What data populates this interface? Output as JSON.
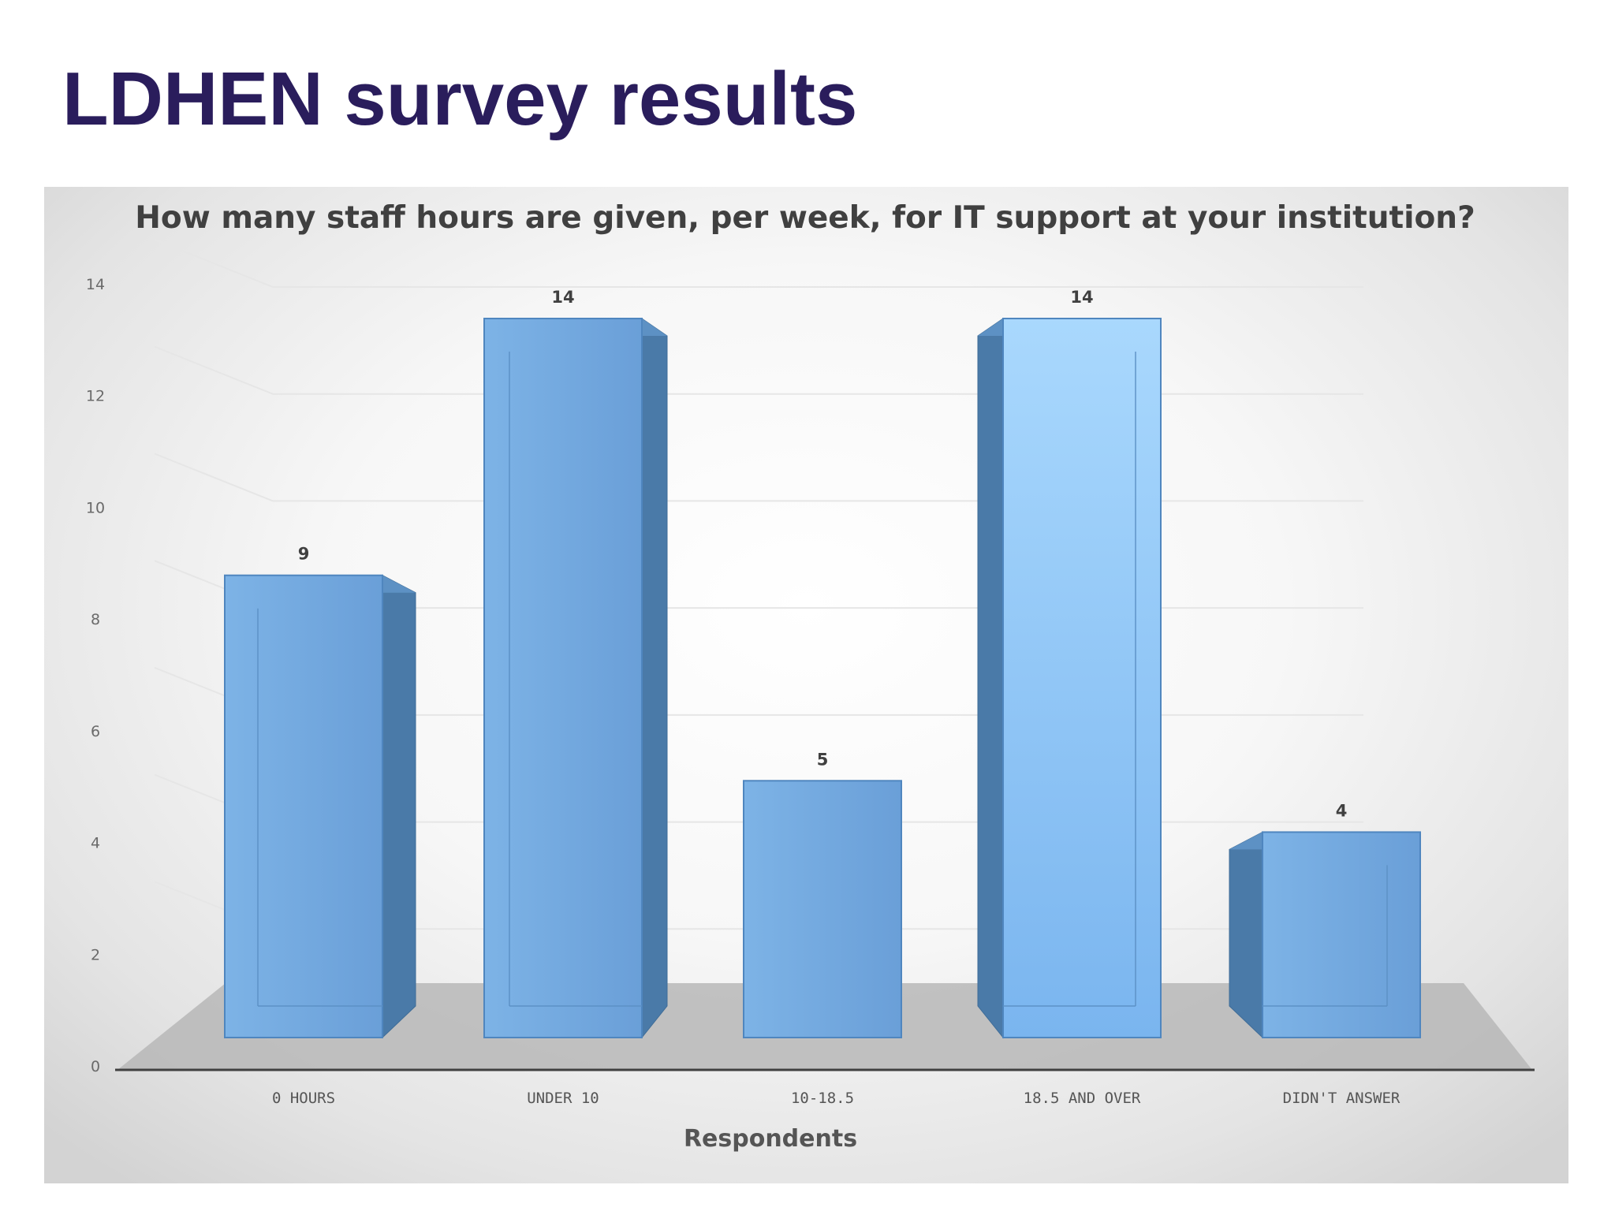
{
  "slide": {
    "title": "LDHEN survey results"
  },
  "colors": {
    "title": "#2a1d5c",
    "bar_front": "#6fa6dd",
    "bar_side": "#4a7aa8",
    "bar_highlight": "#a9d8fd",
    "floor": "#b7b7b7",
    "axis": "#404040"
  },
  "chart_data": {
    "type": "bar",
    "style": "3d-column",
    "title": "How many staff hours are given, per week, for IT support at your institution?",
    "xlabel": "Respondents",
    "ylabel": "",
    "categories": [
      "0 HOURS",
      "UNDER 10",
      "10-18.5",
      "18.5 AND OVER",
      "DIDN'T ANSWER"
    ],
    "values": [
      9,
      14,
      5,
      14,
      4
    ],
    "data_labels": [
      "9",
      "14",
      "5",
      "14",
      "4"
    ],
    "ylim": [
      0,
      14
    ],
    "yticks": [
      "0",
      "2",
      "4",
      "6",
      "8",
      "10",
      "12",
      "14"
    ],
    "grid": true,
    "legend": "none"
  }
}
